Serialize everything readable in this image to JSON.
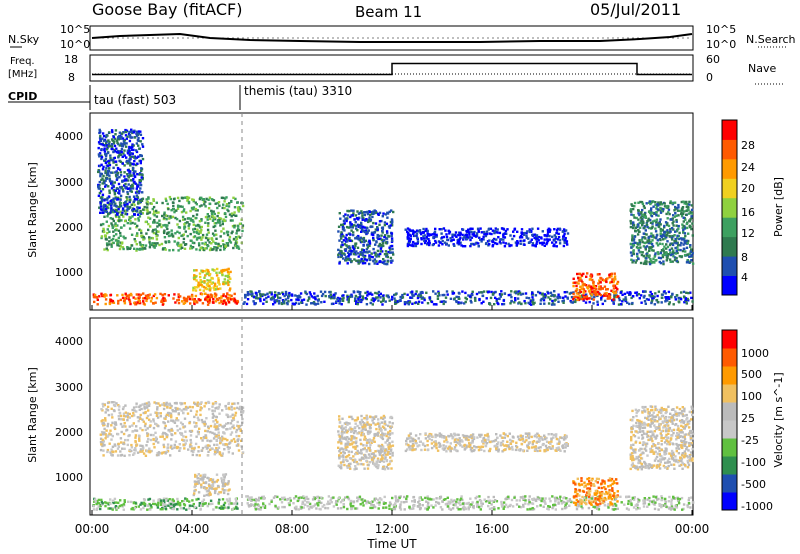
{
  "header": {
    "site": "Goose Bay (fitACF)",
    "beam": "Beam 11",
    "date": "05/Jul/2011"
  },
  "nsky_panel": {
    "left_label": "N.Sky",
    "left_ticks": [
      "10^5",
      "10^0"
    ],
    "right_label": "N.Search",
    "right_ticks": [
      "10^5",
      "10^0"
    ]
  },
  "freq_panel": {
    "left_label_top": "Freq.",
    "left_label_bottom": "[MHz]",
    "left_ticks": [
      "18",
      "8"
    ],
    "right_label": "Nave",
    "right_ticks": [
      "60",
      "0"
    ]
  },
  "cpid_panel": {
    "label": "CPID",
    "segments": [
      {
        "text": "tau (fast) 503"
      },
      {
        "text": "themis (tau) 3310"
      }
    ]
  },
  "colors": {
    "power_scale": [
      "#0000ff",
      "#1f4fb0",
      "#2f7a4f",
      "#3da060",
      "#8fd13f",
      "#f0d020",
      "#ff9a00",
      "#ff5a00",
      "#ff0000"
    ],
    "velocity_scale": [
      "#ff0000",
      "#ff5a00",
      "#ff9a00",
      "#f0c060",
      "#bbbbbb",
      "#c8c8c8",
      "#60c040",
      "#2f8f4f",
      "#1f4fb0",
      "#0000ff"
    ],
    "ground_scatter": "#bbbbbb"
  },
  "chart_data": [
    {
      "type": "heatmap",
      "panel": "power",
      "xlabel": "",
      "ylabel": "Slant Range [km]",
      "xlim": [
        0,
        24
      ],
      "ylim": [
        200,
        4500
      ],
      "yticks": [
        "1000",
        "2000",
        "3000",
        "4000"
      ],
      "colorbar": {
        "label": "Power [dB]",
        "ticks": [
          "4",
          "8",
          "12",
          "16",
          "20",
          "24",
          "28"
        ]
      },
      "regions": [
        {
          "t0": 0.0,
          "t1": 5.8,
          "r0": 300,
          "r1": 550,
          "level": 7
        },
        {
          "t0": 0.3,
          "t1": 6.0,
          "r0": 1500,
          "r1": 2700,
          "level": 3
        },
        {
          "t0": 0.2,
          "t1": 2.0,
          "r0": 2300,
          "r1": 4200,
          "level": 1
        },
        {
          "t0": 4.0,
          "t1": 5.5,
          "r0": 600,
          "r1": 1100,
          "level": 5
        },
        {
          "t0": 6.0,
          "t1": 24.0,
          "r0": 300,
          "r1": 600,
          "level": 1
        },
        {
          "t0": 9.8,
          "t1": 12.0,
          "r0": 1200,
          "r1": 2400,
          "level": 1
        },
        {
          "t0": 12.5,
          "t1": 19.0,
          "r0": 1600,
          "r1": 2000,
          "level": 0
        },
        {
          "t0": 19.2,
          "t1": 21.0,
          "r0": 400,
          "r1": 1000,
          "level": 7
        },
        {
          "t0": 21.5,
          "t1": 24.0,
          "r0": 1200,
          "r1": 2600,
          "level": 2
        }
      ]
    },
    {
      "type": "heatmap",
      "panel": "velocity",
      "xlabel": "Time UT",
      "ylabel": "Slant Range [km]",
      "xlim": [
        0,
        24
      ],
      "ylim": [
        200,
        4500
      ],
      "xticks": [
        "00:00",
        "04:00",
        "08:00",
        "12:00",
        "16:00",
        "20:00",
        "00:00"
      ],
      "yticks": [
        "1000",
        "2000",
        "3000",
        "4000"
      ],
      "colorbar": {
        "label": "Velocity [m s^-1]",
        "ticks": [
          "1000",
          "500",
          "100",
          "25",
          "-25",
          "-100",
          "-500",
          "-1000"
        ]
      },
      "regions": [
        {
          "t0": 0.0,
          "t1": 5.8,
          "r0": 300,
          "r1": 550,
          "level": 6
        },
        {
          "t0": 0.3,
          "t1": 6.0,
          "r0": 1500,
          "r1": 2700,
          "level": 4
        },
        {
          "t0": 4.0,
          "t1": 5.5,
          "r0": 600,
          "r1": 1100,
          "level": 4
        },
        {
          "t0": 6.0,
          "t1": 24.0,
          "r0": 300,
          "r1": 600,
          "level": 5
        },
        {
          "t0": 9.8,
          "t1": 12.0,
          "r0": 1200,
          "r1": 2400,
          "level": 4
        },
        {
          "t0": 12.5,
          "t1": 19.0,
          "r0": 1600,
          "r1": 2000,
          "level": 4
        },
        {
          "t0": 19.2,
          "t1": 21.0,
          "r0": 400,
          "r1": 1000,
          "level": 2
        },
        {
          "t0": 21.5,
          "t1": 24.0,
          "r0": 1200,
          "r1": 2600,
          "level": 4
        }
      ]
    },
    {
      "type": "line",
      "panel": "frequency",
      "series_values_t": [
        0,
        12,
        12,
        21.8,
        21.8,
        24
      ],
      "series_values_mhz": [
        10.5,
        10.5,
        15.5,
        15.5,
        10.5,
        10.5
      ]
    }
  ]
}
